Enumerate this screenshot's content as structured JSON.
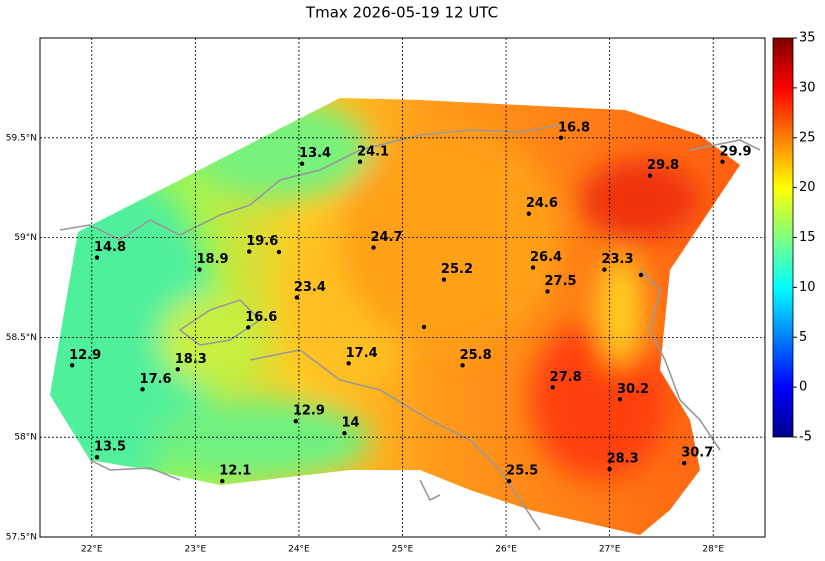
{
  "map": {
    "title": "Tmax 2026-05-19 12 UTC",
    "lonlim": [
      21.5,
      28.5
    ],
    "latlim": [
      57.5,
      60.0
    ],
    "xticks": [
      {
        "value": 22,
        "label": "22°E"
      },
      {
        "value": 23,
        "label": "23°E"
      },
      {
        "value": 24,
        "label": "24°E"
      },
      {
        "value": 25,
        "label": "25°E"
      },
      {
        "value": 26,
        "label": "26°E"
      },
      {
        "value": 27,
        "label": "27°E"
      },
      {
        "value": 28,
        "label": "28°E"
      }
    ],
    "yticks": [
      {
        "value": 57.5,
        "label": "57.5°N"
      },
      {
        "value": 58,
        "label": "58°N"
      },
      {
        "value": 58.5,
        "label": "58.5°N"
      },
      {
        "value": 59,
        "label": "59°N"
      },
      {
        "value": 59.5,
        "label": "59.5°N"
      }
    ],
    "grid": true,
    "colorbar": {
      "lim": [
        -5,
        35
      ],
      "ticks": [
        -5,
        0,
        5,
        10,
        15,
        20,
        25,
        30,
        35
      ]
    },
    "stations": [
      {
        "lon": 24.03,
        "lat": 59.37,
        "value": 13.4
      },
      {
        "lon": 24.59,
        "lat": 59.38,
        "value": 24.1
      },
      {
        "lon": 26.53,
        "lat": 59.5,
        "value": 16.8
      },
      {
        "lon": 27.39,
        "lat": 59.31,
        "value": 29.8
      },
      {
        "lon": 28.09,
        "lat": 59.38,
        "value": 29.9
      },
      {
        "lon": 26.22,
        "lat": 59.12,
        "value": 24.6
      },
      {
        "lon": 22.05,
        "lat": 58.9,
        "value": 14.8
      },
      {
        "lon": 23.52,
        "lat": 58.93,
        "value": 19.6
      },
      {
        "lon": 23.04,
        "lat": 58.84,
        "value": 18.9
      },
      {
        "lon": 24.72,
        "lat": 58.95,
        "value": 24.7
      },
      {
        "lon": 25.4,
        "lat": 58.79,
        "value": 25.2
      },
      {
        "lon": 26.26,
        "lat": 58.85,
        "value": 26.4
      },
      {
        "lon": 26.95,
        "lat": 58.84,
        "value": 23.3
      },
      {
        "lon": 26.4,
        "lat": 58.73,
        "value": 27.5
      },
      {
        "lon": 23.98,
        "lat": 58.7,
        "value": 23.4
      },
      {
        "lon": 23.51,
        "lat": 58.55,
        "value": 16.6
      },
      {
        "lon": 21.81,
        "lat": 58.36,
        "value": 12.9
      },
      {
        "lon": 22.83,
        "lat": 58.34,
        "value": 18.3
      },
      {
        "lon": 22.49,
        "lat": 58.24,
        "value": 17.6
      },
      {
        "lon": 24.48,
        "lat": 58.37,
        "value": 17.4
      },
      {
        "lon": 25.58,
        "lat": 58.36,
        "value": 25.8
      },
      {
        "lon": 26.45,
        "lat": 58.25,
        "value": 27.8
      },
      {
        "lon": 27.1,
        "lat": 58.19,
        "value": 30.2
      },
      {
        "lon": 23.97,
        "lat": 58.08,
        "value": 12.9
      },
      {
        "lon": 24.44,
        "lat": 58.02,
        "value": 14.0
      },
      {
        "lon": 22.05,
        "lat": 57.9,
        "value": 13.5
      },
      {
        "lon": 23.26,
        "lat": 57.78,
        "value": 12.1
      },
      {
        "lon": 26.03,
        "lat": 57.78,
        "value": 25.5
      },
      {
        "lon": 27.0,
        "lat": 57.84,
        "value": 28.3
      },
      {
        "lon": 27.72,
        "lat": 57.87,
        "value": 30.7
      }
    ]
  }
}
